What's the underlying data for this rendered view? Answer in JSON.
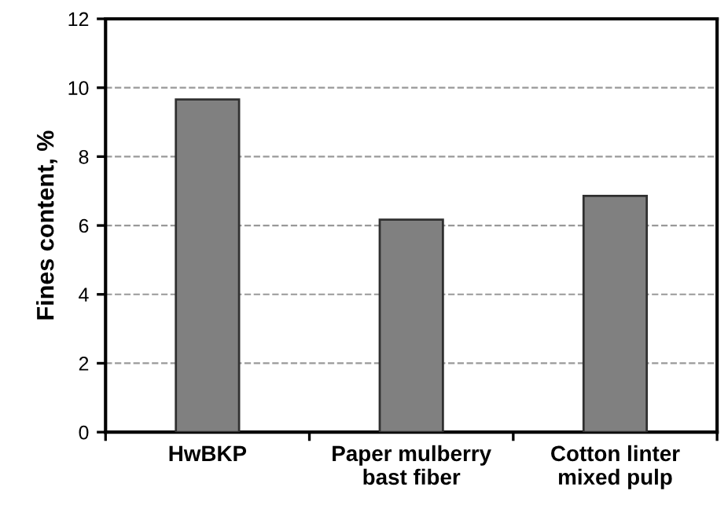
{
  "chart_data": {
    "type": "bar",
    "ylabel": "Fines content, %",
    "categories": [
      "HwBKP",
      "Paper mulberry\nbast fiber",
      "Cotton linter\nmixed pulp"
    ],
    "values": [
      9.66,
      6.17,
      6.86
    ],
    "color": "#808080",
    "ylim": [
      0,
      12
    ],
    "yticks": [
      0,
      2,
      4,
      6,
      8,
      10,
      12
    ],
    "grid": "y"
  }
}
